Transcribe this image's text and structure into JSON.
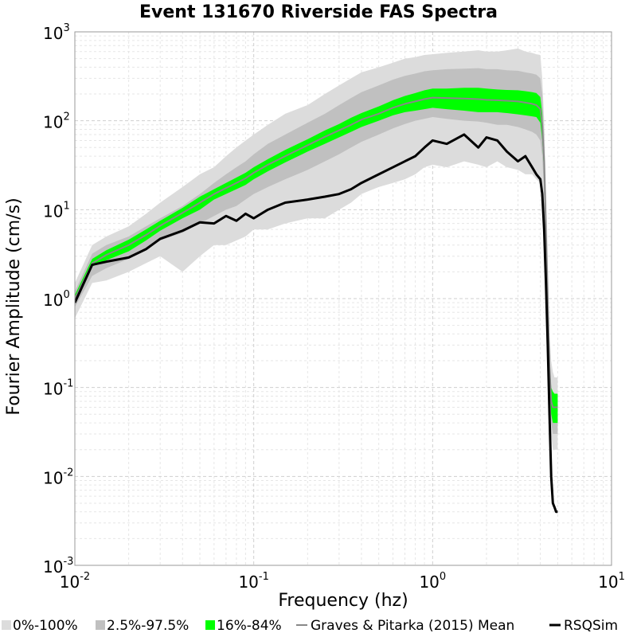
{
  "chart_data": {
    "type": "line",
    "title": "Event 131670 Riverside FAS Spectra",
    "xlabel": "Frequency (hz)",
    "ylabel": "Fourier Amplitude (cm/s)",
    "x_scale": "log",
    "y_scale": "log",
    "xlim": [
      0.01,
      10
    ],
    "ylim": [
      0.001,
      1000
    ],
    "grid": true,
    "x_ticks": [
      {
        "base": "10",
        "exp": "-2",
        "value": 0.01
      },
      {
        "base": "10",
        "exp": "-1",
        "value": 0.1
      },
      {
        "base": "10",
        "exp": "0",
        "value": 1
      },
      {
        "base": "10",
        "exp": "1",
        "value": 10
      }
    ],
    "y_ticks": [
      {
        "base": "10",
        "exp": "-3",
        "value": 0.001
      },
      {
        "base": "10",
        "exp": "-2",
        "value": 0.01
      },
      {
        "base": "10",
        "exp": "-1",
        "value": 0.1
      },
      {
        "base": "10",
        "exp": "0",
        "value": 1
      },
      {
        "base": "10",
        "exp": "1",
        "value": 10
      },
      {
        "base": "10",
        "exp": "2",
        "value": 100
      },
      {
        "base": "10",
        "exp": "3",
        "value": 1000
      }
    ],
    "legend_position": "bottom",
    "legend": [
      {
        "label": "0%-100%",
        "color": "#dcdcdc",
        "kind": "box"
      },
      {
        "label": "2.5%-97.5%",
        "color": "#c0c0c0",
        "kind": "box"
      },
      {
        "label": "16%-84%",
        "color": "#00ff00",
        "kind": "box"
      },
      {
        "label": "Graves & Pitarka (2015) Mean",
        "color": "#888888",
        "kind": "line"
      },
      {
        "label": "RSQSim",
        "color": "#000000",
        "kind": "line"
      }
    ],
    "x": [
      0.01,
      0.0125,
      0.015,
      0.02,
      0.025,
      0.03,
      0.04,
      0.05,
      0.06,
      0.07,
      0.08,
      0.09,
      0.1,
      0.12,
      0.15,
      0.2,
      0.25,
      0.3,
      0.35,
      0.4,
      0.5,
      0.6,
      0.7,
      0.8,
      0.9,
      1.0,
      1.2,
      1.5,
      1.8,
      2.0,
      2.3,
      2.6,
      3.0,
      3.3,
      3.6,
      3.8,
      4.0,
      4.1,
      4.2,
      4.3,
      4.4,
      4.5,
      4.6,
      4.7,
      4.8,
      4.9,
      5.0
    ],
    "series": [
      {
        "name": "0%-100%",
        "color": "#dcdcdc",
        "kind": "band",
        "lower": [
          0.6,
          1.5,
          1.6,
          2.0,
          2.5,
          3.0,
          2.0,
          3.0,
          4.0,
          4.0,
          4.5,
          5.0,
          6.0,
          6.0,
          7.0,
          8.0,
          8.0,
          10.0,
          12.0,
          15.0,
          18.0,
          20.0,
          22.0,
          25.0,
          30.0,
          32.0,
          30.0,
          35.0,
          32.0,
          30.0,
          35.0,
          30.0,
          28.0,
          25.0,
          25.0,
          22.0,
          20.0,
          12.0,
          5.0,
          1.0,
          0.3,
          0.08,
          0.03,
          0.02,
          0.02,
          0.02,
          0.02
        ],
        "upper": [
          1.5,
          4.0,
          5.0,
          6.5,
          9.0,
          12.0,
          18.0,
          25.0,
          30.0,
          40.0,
          50.0,
          60.0,
          70.0,
          90.0,
          120.0,
          150.0,
          200.0,
          250.0,
          300.0,
          350.0,
          400.0,
          450.0,
          500.0,
          520.0,
          550.0,
          560.0,
          580.0,
          600.0,
          620.0,
          600.0,
          600.0,
          620.0,
          650.0,
          600.0,
          580.0,
          560.0,
          550.0,
          300.0,
          100.0,
          20.0,
          3.0,
          0.4,
          0.2,
          0.15,
          0.13,
          0.13,
          0.13
        ]
      },
      {
        "name": "2.5%-97.5%",
        "color": "#c0c0c0",
        "kind": "band",
        "lower": [
          0.8,
          1.8,
          2.2,
          2.8,
          3.6,
          4.5,
          5.5,
          7.0,
          8.5,
          10.0,
          11.0,
          13.0,
          15.0,
          18.0,
          22.0,
          28.0,
          35.0,
          42.0,
          50.0,
          58.0,
          70.0,
          82.0,
          92.0,
          100.0,
          105.0,
          110.0,
          105.0,
          100.0,
          98.0,
          95.0,
          90.0,
          90.0,
          85.0,
          80.0,
          75.0,
          70.0,
          60.0,
          40.0,
          15.0,
          3.0,
          0.5,
          0.1,
          0.04,
          0.03,
          0.03,
          0.03,
          0.03
        ],
        "upper": [
          1.2,
          3.2,
          4.0,
          5.0,
          6.5,
          8.0,
          11.0,
          15.0,
          20.0,
          25.0,
          30.0,
          35.0,
          42.0,
          55.0,
          70.0,
          95.0,
          120.0,
          150.0,
          180.0,
          210.0,
          250.0,
          290.0,
          320.0,
          340.0,
          360.0,
          370.0,
          380.0,
          385.0,
          390.0,
          380.0,
          380.0,
          370.0,
          365.0,
          350.0,
          340.0,
          330.0,
          300.0,
          200.0,
          70.0,
          10.0,
          1.5,
          0.25,
          0.1,
          0.08,
          0.07,
          0.07,
          0.07
        ]
      },
      {
        "name": "16%-84%",
        "color": "#00ff00",
        "kind": "band",
        "lower": [
          0.9,
          2.3,
          2.7,
          3.4,
          4.5,
          5.8,
          8.0,
          10.0,
          13.0,
          15.0,
          17.0,
          19.0,
          22.0,
          27.0,
          34.0,
          45.0,
          55.0,
          65.0,
          75.0,
          85.0,
          100.0,
          115.0,
          125.0,
          130.0,
          135.0,
          140.0,
          135.0,
          130.0,
          125.0,
          125.0,
          125.0,
          122.0,
          118.0,
          115.0,
          112.0,
          110.0,
          95.0,
          60.0,
          25.0,
          5.0,
          0.8,
          0.15,
          0.05,
          0.04,
          0.04,
          0.04,
          0.04
        ],
        "upper": [
          1.1,
          2.8,
          3.5,
          4.6,
          6.0,
          7.5,
          10.5,
          14.0,
          17.0,
          20.0,
          23.0,
          26.0,
          30.0,
          37.0,
          47.0,
          62.0,
          78.0,
          92.0,
          108.0,
          122.0,
          145.0,
          170.0,
          190.0,
          205.0,
          220.0,
          230.0,
          230.0,
          235.0,
          235.0,
          230.0,
          225.0,
          222.0,
          220.0,
          215.0,
          210.0,
          205.0,
          185.0,
          120.0,
          45.0,
          8.0,
          1.2,
          0.2,
          0.1,
          0.09,
          0.085,
          0.085,
          0.085
        ]
      },
      {
        "name": "Graves & Pitarka (2015) Mean",
        "color": "#888888",
        "kind": "line",
        "values": [
          1.0,
          2.5,
          3.1,
          4.0,
          5.2,
          6.6,
          9.2,
          12.0,
          15.0,
          17.5,
          20.0,
          22.5,
          26.0,
          32.0,
          40.0,
          53.0,
          66.0,
          78.0,
          90.0,
          103.0,
          120.0,
          140.0,
          155.0,
          165.0,
          175.0,
          182.0,
          180.0,
          178.0,
          175.0,
          172.0,
          170.0,
          168.0,
          165.0,
          160.0,
          155.0,
          150.0,
          135.0,
          90.0,
          35.0,
          6.0,
          1.0,
          0.17,
          0.07,
          0.06,
          0.06,
          0.06,
          0.06
        ]
      },
      {
        "name": "RSQSim",
        "color": "#000000",
        "kind": "line",
        "values": [
          0.9,
          2.4,
          2.6,
          2.9,
          3.6,
          4.7,
          5.8,
          7.2,
          7.0,
          8.5,
          7.5,
          9.0,
          8.0,
          10.0,
          12.0,
          13.0,
          14.0,
          15.0,
          17.0,
          20.0,
          25.0,
          30.0,
          35.0,
          40.0,
          50.0,
          60.0,
          55.0,
          70.0,
          50.0,
          65.0,
          60.0,
          45.0,
          35.0,
          40.0,
          30.0,
          25.0,
          22.0,
          15.0,
          6.0,
          1.5,
          0.3,
          0.05,
          0.01,
          0.005,
          0.0045,
          0.004,
          0.004
        ]
      }
    ]
  }
}
